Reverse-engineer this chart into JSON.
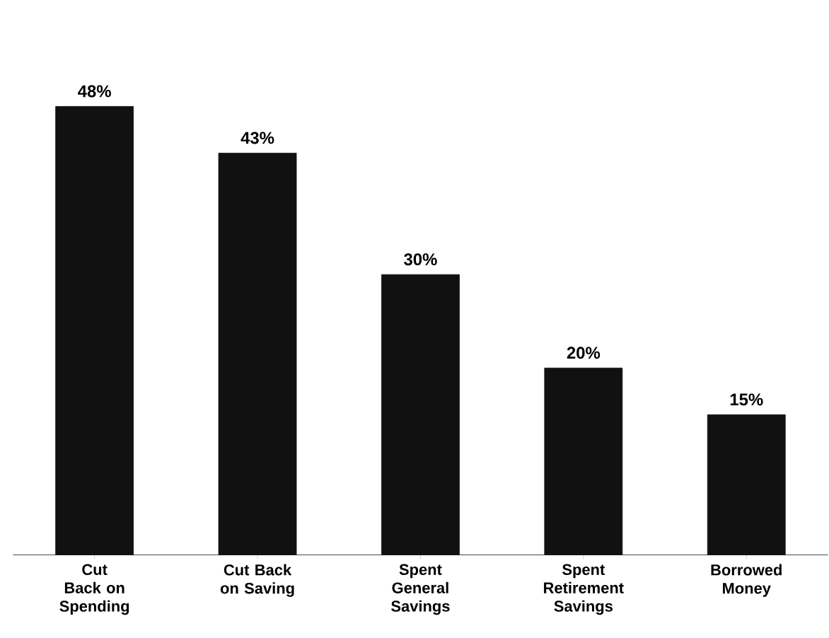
{
  "chart_data": {
    "type": "bar",
    "categories": [
      "Cut Back on Spending",
      "Cut Back on Saving",
      "Spent General Savings",
      "Spent Retirement Savings",
      "Borrowed Money"
    ],
    "values": [
      48,
      43,
      30,
      20,
      15
    ],
    "value_labels": [
      "48%",
      "43%",
      "30%",
      "20%",
      "15%"
    ],
    "color": "#111111",
    "tick_labels": "x"
  }
}
